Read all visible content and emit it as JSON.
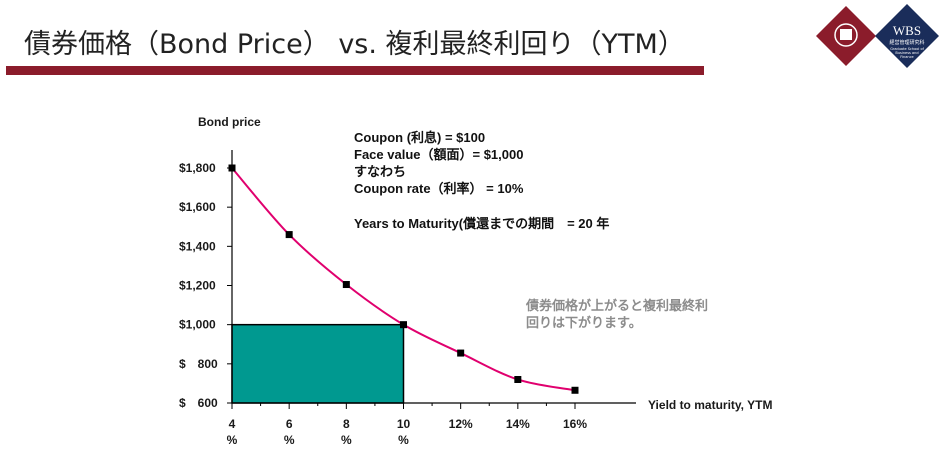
{
  "slide": {
    "title": "債券価格（Bond Price） vs. 複利最終利回り（YTM）",
    "logo_text": "WBS",
    "logo_subtext_1": "経営管理研究科",
    "logo_subtext_2": "Graduate School of",
    "logo_subtext_3": "Business and",
    "logo_subtext_4": "Finance",
    "colors": {
      "accent": "#8b1c2b",
      "line": "#e0006e",
      "fill": "#009990",
      "logo_navy": "#1a2d5a"
    }
  },
  "info": {
    "line1": "Coupon (利息) = $100",
    "line2": "Face value（額面）= $1,000",
    "line3": "すなわち",
    "line4": "Coupon rate（利率） = 10%",
    "line5": "Years to Maturity(償還までの期間　= 20 年"
  },
  "note": {
    "line1": "債券価格が上がると複利最終利",
    "line2": "回りは下がります。"
  },
  "chart_data": {
    "type": "line",
    "ylabel": "Bond price",
    "xlabel": "Yield to maturity, YTM",
    "x": [
      4,
      6,
      8,
      10,
      12,
      14,
      16
    ],
    "y": [
      1800,
      1460,
      1205,
      1000,
      855,
      720,
      665
    ],
    "xlim": [
      4,
      16
    ],
    "ylim": [
      600,
      1800
    ],
    "yticks": [
      {
        "value": 1800,
        "label": "$1,800"
      },
      {
        "value": 1600,
        "label": "$1,600"
      },
      {
        "value": 1400,
        "label": "$1,400"
      },
      {
        "value": 1200,
        "label": "$1,200"
      },
      {
        "value": 1000,
        "label": "$1,000"
      },
      {
        "value": 800,
        "label": "$　800"
      },
      {
        "value": 600,
        "label": "$　600"
      }
    ],
    "xticks": [
      {
        "value": 4,
        "line1": "4",
        "line2": "%"
      },
      {
        "value": 6,
        "line1": "6",
        "line2": "%"
      },
      {
        "value": 8,
        "line1": "8",
        "line2": "%"
      },
      {
        "value": 10,
        "line1": "10",
        "line2": "%"
      },
      {
        "value": 12,
        "line1": "12%",
        "line2": ""
      },
      {
        "value": 14,
        "line1": "14%",
        "line2": ""
      },
      {
        "value": 16,
        "line1": "16%",
        "line2": ""
      }
    ],
    "highlight": {
      "x": 10,
      "y": 1000
    },
    "grid": false
  }
}
